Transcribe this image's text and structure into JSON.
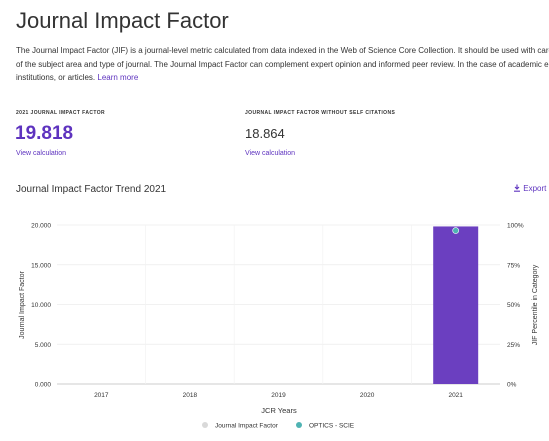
{
  "page": {
    "title": "Journal Impact Factor",
    "description_lines": [
      "The Journal Impact Factor (JIF) is a journal-level metric calculated from data indexed in the Web of Science Core Collection. It should be used with care",
      "of the subject area and type of journal. The Journal Impact Factor can complement expert opinion and informed peer review. In the case of academic e",
      "institutions, or articles."
    ],
    "learn_more": "Learn more"
  },
  "metrics": {
    "jif": {
      "label": "2021 JOURNAL IMPACT FACTOR",
      "value": "19.818",
      "link": "View calculation",
      "color": "#5e33bf"
    },
    "jif_no_self": {
      "label": "JOURNAL IMPACT FACTOR WITHOUT SELF CITATIONS",
      "value": "18.864",
      "link": "View calculation"
    }
  },
  "chart_section": {
    "title": "Journal Impact Factor Trend 2021",
    "export_label": "Export"
  },
  "chart_data": {
    "type": "bar",
    "categories": [
      "2017",
      "2018",
      "2019",
      "2020",
      "2021"
    ],
    "series": [
      {
        "name": "Journal Impact Factor",
        "axis": "left",
        "values": [
          null,
          null,
          null,
          null,
          19.818
        ],
        "color": "#6b3fc0"
      },
      {
        "name": "OPTICS - SCIE",
        "axis": "right",
        "kind": "scatter",
        "values": [
          null,
          null,
          null,
          null,
          96.5
        ],
        "color": "#4fb3b3"
      }
    ],
    "xlabel": "JCR Years",
    "ylabel": "Journal Impact Factor",
    "ylabel_right": "JIF Percentile in Category",
    "ylim": [
      0,
      20
    ],
    "yticks": [
      "0.000",
      "5.000",
      "10.000",
      "15.000",
      "20.000"
    ],
    "ylim_right": [
      0,
      100
    ],
    "yticks_right": [
      "0%",
      "25%",
      "50%",
      "75%",
      "100%"
    ],
    "grid": true,
    "legend": "bottom"
  }
}
